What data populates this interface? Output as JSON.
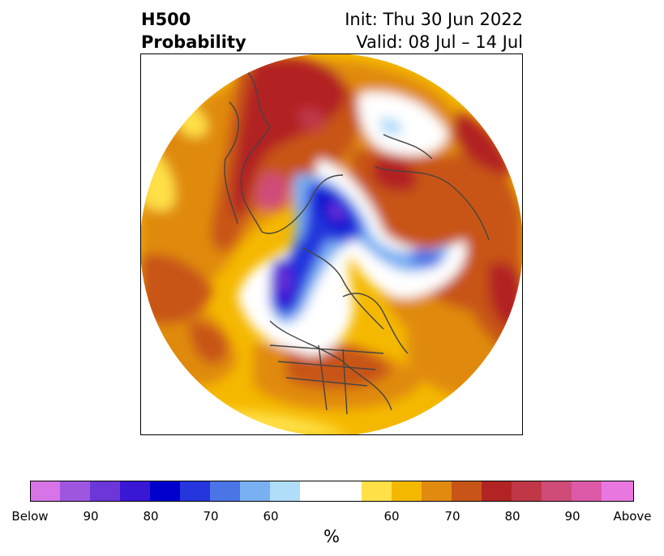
{
  "header": {
    "title_line1": "H500",
    "title_line2": "Probability",
    "init": "Init: Thu 30 Jun 2022",
    "valid": "Valid: 08 Jul – 14 Jul"
  },
  "colorbar": {
    "units": "%",
    "colors": [
      "#d674e8",
      "#9e56e0",
      "#6c36d8",
      "#3a17d4",
      "#0000cc",
      "#2436dc",
      "#4b74e6",
      "#78b0f2",
      "#b0ddf8",
      "#ffffff",
      "#ffffff",
      "#ffe047",
      "#f5b800",
      "#e08a10",
      "#c85418",
      "#b22424",
      "#c03848",
      "#d04c78",
      "#dd5aa8",
      "#e878e0"
    ],
    "tick_labels": [
      "Below",
      "90",
      "80",
      "70",
      "60",
      "60",
      "70",
      "80",
      "90",
      "Above"
    ]
  },
  "map": {
    "projection": "north-polar-stereographic",
    "field": "500 hPa height probability"
  }
}
